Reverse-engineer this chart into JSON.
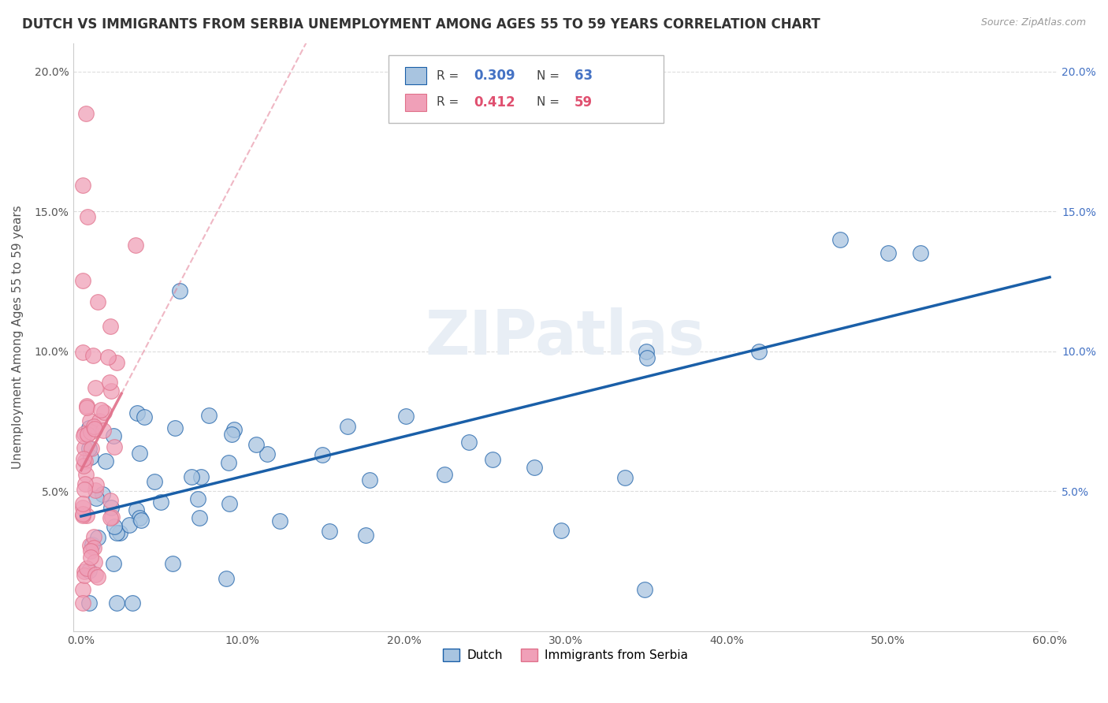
{
  "title": "DUTCH VS IMMIGRANTS FROM SERBIA UNEMPLOYMENT AMONG AGES 55 TO 59 YEARS CORRELATION CHART",
  "source": "Source: ZipAtlas.com",
  "ylabel": "Unemployment Among Ages 55 to 59 years",
  "xlim": [
    0.0,
    0.6
  ],
  "ylim": [
    0.0,
    0.21
  ],
  "dutch_R": 0.309,
  "dutch_N": 63,
  "serbia_R": 0.412,
  "serbia_N": 59,
  "dutch_color": "#a8c4e0",
  "dutch_line_color": "#1a5fa8",
  "serbia_color": "#f0a0b8",
  "serbia_line_color": "#e0708a",
  "watermark": "ZIPatlas"
}
